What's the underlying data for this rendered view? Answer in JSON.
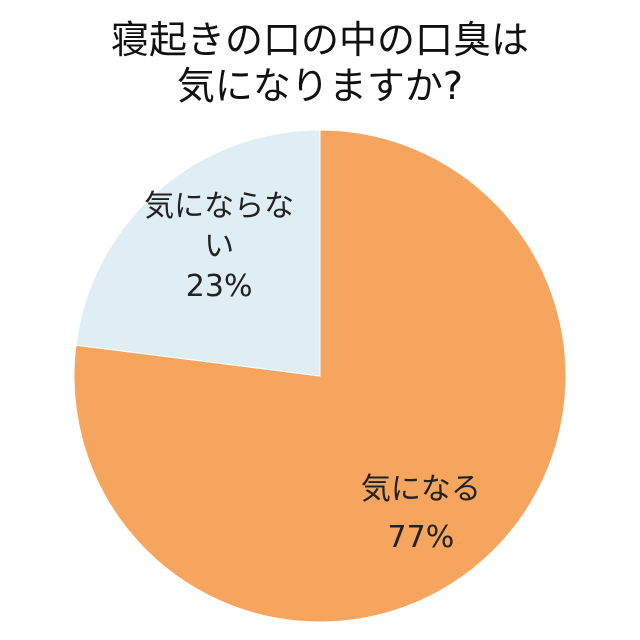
{
  "chart_data": {
    "type": "pie",
    "title": [
      "寝起きの口の中の口臭は",
      "気になりますか?"
    ],
    "categories": [
      "気になる",
      "気にならない"
    ],
    "values": [
      77,
      23
    ],
    "value_labels": [
      "77%",
      "23%"
    ],
    "colors": [
      "#f6a55f",
      "#dfeef5"
    ]
  }
}
